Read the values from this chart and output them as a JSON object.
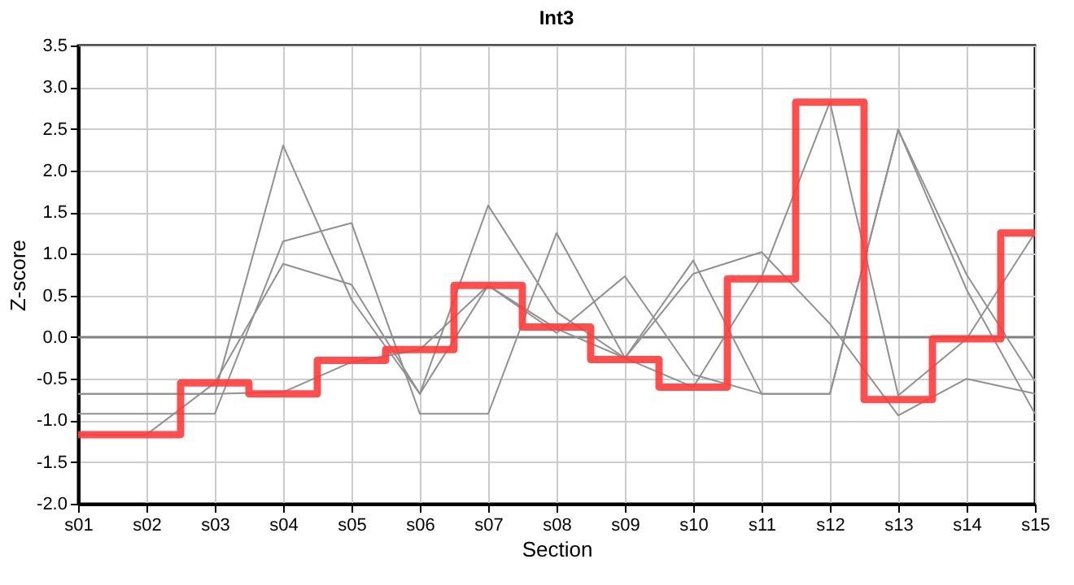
{
  "chart_data": {
    "type": "line",
    "title": "Int3",
    "xlabel": "Section",
    "ylabel": "Z-score",
    "categories": [
      "s01",
      "s02",
      "s03",
      "s04",
      "s05",
      "s06",
      "s07",
      "s08",
      "s09",
      "s10",
      "s11",
      "s12",
      "s13",
      "s14",
      "s15"
    ],
    "series": [
      {
        "color": "#909090",
        "values": [
          -0.68,
          -0.68,
          -0.68,
          2.3,
          0.45,
          -0.68,
          1.58,
          0.3,
          -0.25,
          -0.6,
          0.72,
          2.82,
          -0.7,
          -0.02,
          1.25
        ]
      },
      {
        "color": "#909090",
        "values": [
          -0.92,
          -0.92,
          -0.92,
          1.15,
          1.37,
          -0.92,
          -0.92,
          1.25,
          -0.25,
          0.92,
          -0.68,
          -0.68,
          2.49,
          0.57,
          -0.92
        ]
      },
      {
        "color": "#909090",
        "values": [
          -1.17,
          -1.17,
          -0.55,
          0.88,
          0.63,
          -0.68,
          0.62,
          0.05,
          0.73,
          -0.45,
          -0.68,
          -0.68,
          2.49,
          0.75,
          -0.53
        ]
      },
      {
        "color": "#909090",
        "values": [
          -0.68,
          -0.68,
          -0.68,
          -0.66,
          -0.3,
          -0.15,
          0.62,
          0.1,
          -0.25,
          0.76,
          1.02,
          0.16,
          -0.94,
          -0.5,
          -0.68
        ]
      },
      {
        "type": "step",
        "color": "#ff3b3b",
        "values": [
          -1.17,
          -1.17,
          -0.55,
          -0.68,
          -0.28,
          -0.15,
          0.62,
          0.12,
          -0.27,
          -0.6,
          0.7,
          2.82,
          -0.75,
          -0.02,
          1.25
        ]
      }
    ],
    "ylim": [
      -2.0,
      3.5
    ],
    "yticks": [
      {
        "value": -2,
        "label": "-2.0"
      },
      {
        "value": -1.5,
        "label": "-1.5"
      },
      {
        "value": -1,
        "label": "-1.0"
      },
      {
        "value": -0.5,
        "label": "-0.5"
      },
      {
        "value": 0,
        "label": "0.0"
      },
      {
        "value": 0.5,
        "label": "0.5"
      },
      {
        "value": 1,
        "label": "1.0"
      },
      {
        "value": 1.5,
        "label": "1.5"
      },
      {
        "value": 2,
        "label": "2.0"
      },
      {
        "value": 2.5,
        "label": "2.5"
      },
      {
        "value": 3,
        "label": "3.0"
      },
      {
        "value": 3.5,
        "label": "3.5"
      }
    ],
    "ref_lines": [
      {
        "axis": "y",
        "value": 0,
        "color": "#808080"
      }
    ],
    "grid": true,
    "marker": "none",
    "line_style": "solid"
  }
}
